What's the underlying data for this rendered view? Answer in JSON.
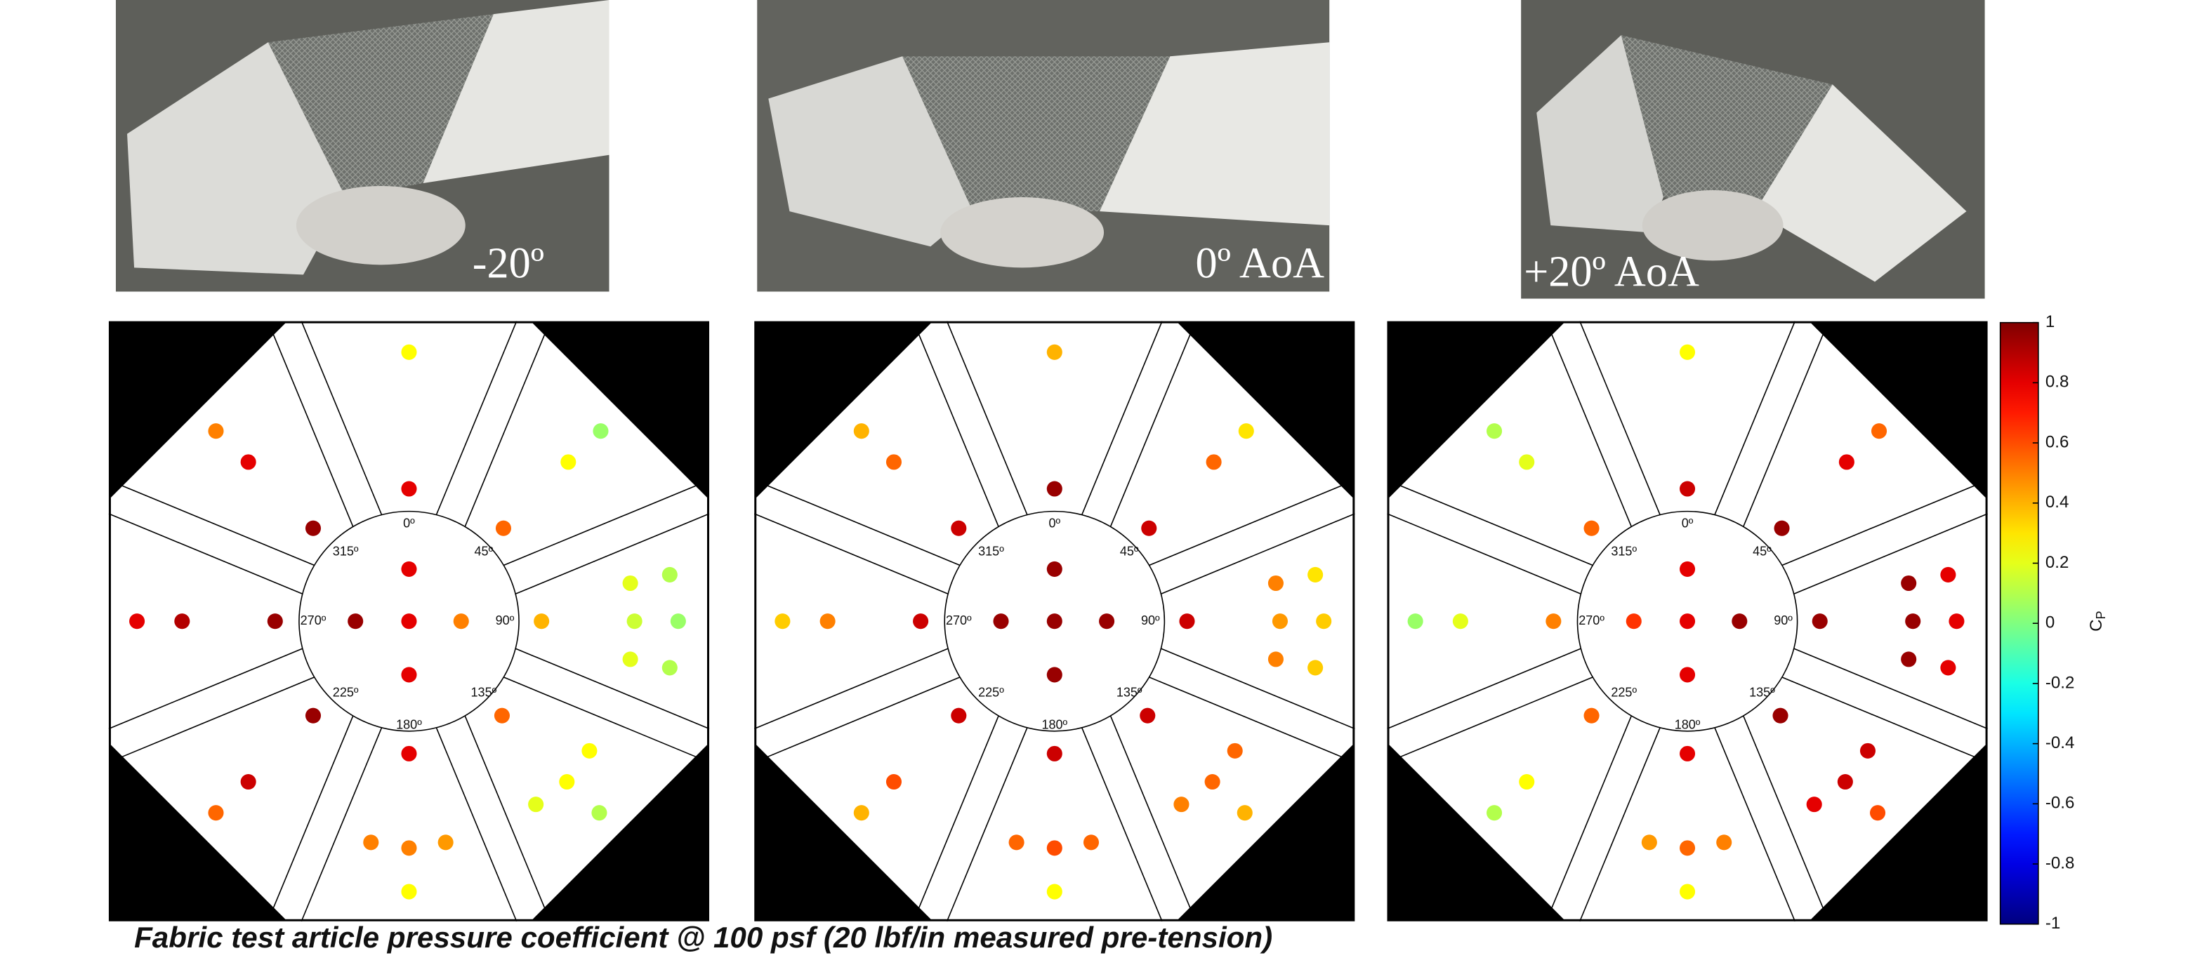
{
  "photos": [
    {
      "caption": "-20º"
    },
    {
      "caption": "0º AoA"
    },
    {
      "caption": "+20º AoA"
    }
  ],
  "chart_data": {
    "type": "pressure-map",
    "tap_angle_labels": [
      "0º",
      "45º",
      "90º",
      "135º",
      "180º",
      "225º",
      "270º",
      "315º"
    ],
    "panels": [
      {
        "values": [
          0.25,
          0.8,
          0.8,
          0.8,
          0.8,
          0.95,
          0.5,
          0.8,
          0.9,
          0.95,
          0.4,
          0.2,
          0.1,
          0.15,
          0.05,
          0.2,
          0.1,
          0.8,
          0.5,
          0.5,
          0.45,
          0.25,
          0.5,
          0.8,
          0.95,
          0.55,
          0.25,
          0.05,
          0.95,
          0.85,
          0.55,
          0.55,
          0.2,
          0.25,
          0.25,
          0.1
        ]
      },
      {
        "values": [
          0.4,
          0.95,
          0.95,
          0.95,
          0.95,
          0.95,
          0.95,
          0.35,
          0.5,
          0.85,
          0.85,
          0.5,
          0.3,
          0.45,
          0.35,
          0.5,
          0.35,
          0.85,
          0.55,
          0.6,
          0.55,
          0.25,
          0.4,
          0.55,
          0.85,
          0.85,
          0.55,
          0.3,
          0.85,
          0.6,
          0.4,
          0.85,
          0.5,
          0.55,
          0.55,
          0.4
        ]
      },
      {
        "values": [
          0.25,
          0.85,
          0.8,
          0.8,
          0.8,
          0.65,
          0.95,
          0.05,
          0.2,
          0.5,
          0.95,
          0.95,
          0.8,
          0.95,
          0.8,
          0.95,
          0.8,
          0.8,
          0.45,
          0.55,
          0.5,
          0.25,
          0.1,
          0.2,
          0.55,
          0.95,
          0.8,
          0.55,
          0.55,
          0.25,
          0.1,
          0.95,
          0.8,
          0.85,
          0.85,
          0.6
        ]
      }
    ],
    "colorbar": {
      "label": "C",
      "label_subscript": "P",
      "colormap": "jet",
      "ylim": [
        -1,
        1
      ],
      "yticks": [
        1,
        0.8,
        0.6,
        0.4,
        0.2,
        0,
        -0.2,
        -0.4,
        -0.6,
        -0.8,
        -1
      ]
    }
  },
  "caption": "Fabric test article pressure coefficient @ 100 psf (20 lbf/in measured pre-tension)"
}
